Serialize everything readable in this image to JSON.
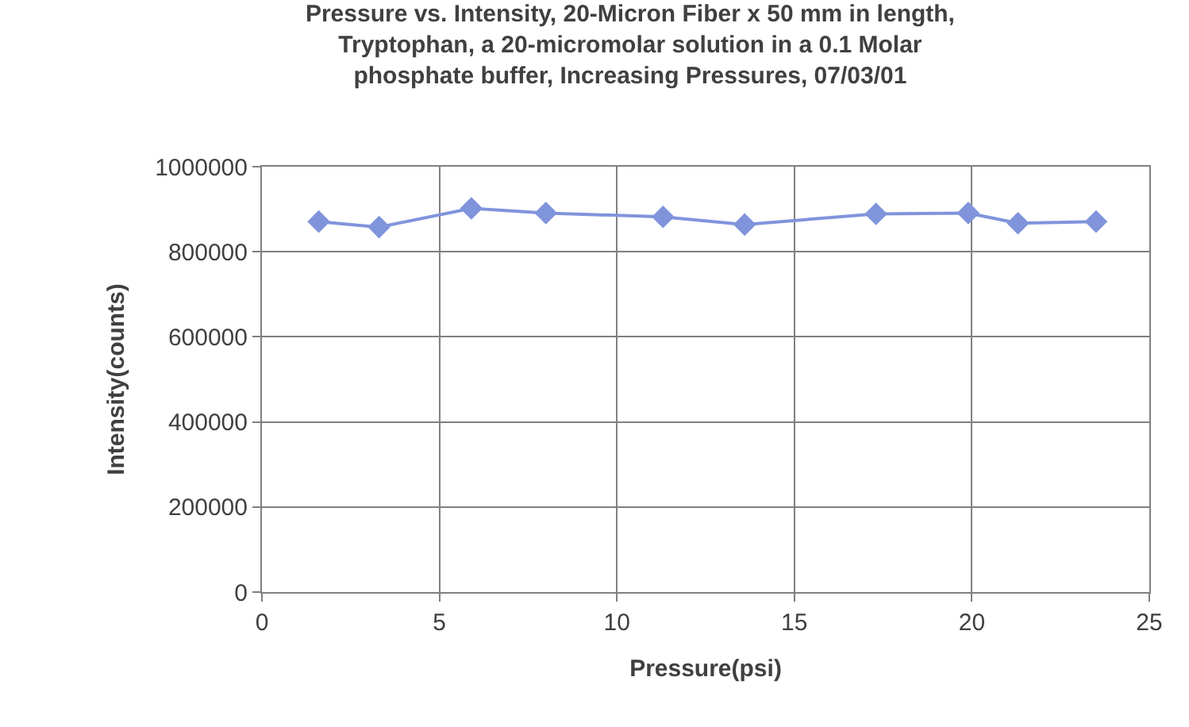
{
  "chart_data": {
    "type": "line",
    "title": "Pressure vs. Intensity, 20-Micron Fiber x 50 mm in length,\nTryptophan, a 20-micromolar solution in a 0.1 Molar\nphosphate buffer, Increasing Pressures, 07/03/01",
    "xlabel": "Pressure(psi)",
    "ylabel": "Intensity(counts)",
    "x": [
      1.6,
      3.3,
      5.9,
      8.0,
      11.3,
      13.6,
      17.3,
      19.9,
      21.3,
      23.5
    ],
    "series": [
      {
        "color": "#8094dc",
        "values": [
          871000,
          858000,
          902000,
          891000,
          882000,
          864000,
          889000,
          891000,
          867000,
          871000
        ]
      }
    ],
    "xlim": [
      0,
      25
    ],
    "xticks": [
      0,
      5,
      10,
      15,
      20,
      25
    ],
    "ylim": [
      0,
      1000000
    ],
    "yticks": [
      0,
      200000,
      400000,
      600000,
      800000,
      1000000
    ],
    "grid": true,
    "marker": "diamond",
    "line_style": "solid",
    "legend": false
  }
}
